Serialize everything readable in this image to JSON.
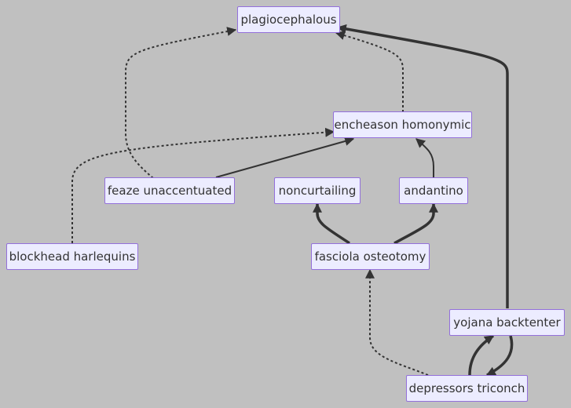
{
  "nodes": {
    "plagiocephalous": "plagiocephalous",
    "encheason_homonymic": "encheason homonymic",
    "feaze_unaccentuated": "feaze unaccentuated",
    "noncurtailing": "noncurtailing",
    "andantino": "andantino",
    "blockhead_harlequins": "blockhead harlequins",
    "fasciola_osteotomy": "fasciola osteotomy",
    "yojana_backtenter": "yojana backtenter",
    "depressors_triconch": "depressors triconch"
  },
  "edges": [
    {
      "from": "feaze unaccentuated",
      "to": "plagiocephalous",
      "style": "dotted"
    },
    {
      "from": "encheason homonymic",
      "to": "plagiocephalous",
      "style": "dotted"
    },
    {
      "from": "yojana backtenter",
      "to": "plagiocephalous",
      "style": "thick"
    },
    {
      "from": "blockhead harlequins",
      "to": "encheason homonymic",
      "style": "dotted"
    },
    {
      "from": "feaze unaccentuated",
      "to": "encheason homonymic",
      "style": "thick"
    },
    {
      "from": "andantino",
      "to": "encheason homonymic",
      "style": "solid"
    },
    {
      "from": "fasciola osteotomy",
      "to": "noncurtailing",
      "style": "thick"
    },
    {
      "from": "fasciola osteotomy",
      "to": "andantino",
      "style": "thick"
    },
    {
      "from": "depressors triconch",
      "to": "fasciola osteotomy",
      "style": "dotted"
    },
    {
      "from": "depressors triconch",
      "to": "yojana backtenter",
      "style": "thick"
    },
    {
      "from": "yojana backtenter",
      "to": "depressors triconch",
      "style": "thick"
    }
  ],
  "colors": {
    "background": "#c0c0c0",
    "node_fill": "#ececff",
    "node_border": "#9370db",
    "edge": "#333333",
    "text": "#333333"
  }
}
